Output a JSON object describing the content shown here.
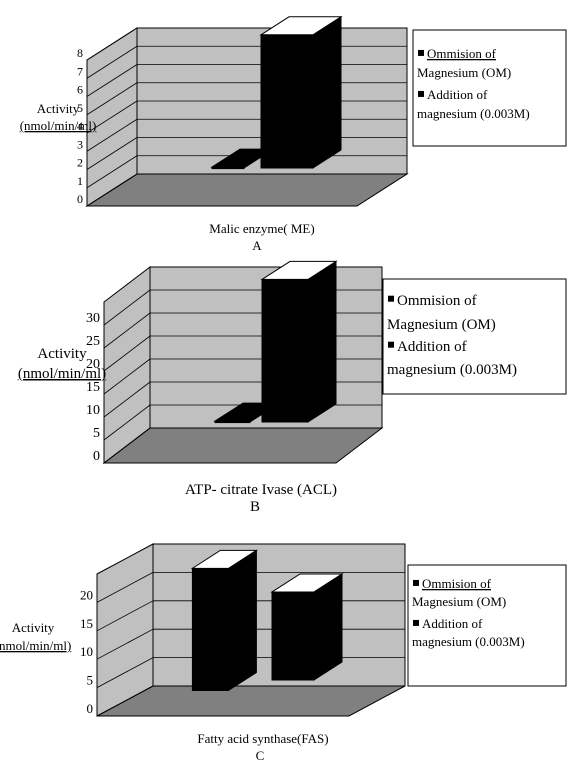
{
  "chart_data": [
    {
      "type": "bar",
      "ylabel_line1": "Activity",
      "ylabel_line2": "(nmol/min/ml)",
      "category": "Malic enzyme( ME)",
      "panel": "A",
      "yticks": [
        0,
        1,
        2,
        3,
        4,
        5,
        6,
        7,
        8
      ],
      "ylim": [
        0,
        8
      ],
      "series": [
        {
          "name": "Ommision of Magnesium (OM)",
          "value": 0.05,
          "color": "#000000"
        },
        {
          "name": "Addition of magnesium (0.003M)",
          "value": 7.3,
          "color": "#000000"
        }
      ],
      "legend": {
        "line1": "Ommision of",
        "line2": "Magnesium (OM)",
        "line3": "Addition of",
        "line4": "magnesium (0.003M)"
      }
    },
    {
      "type": "bar",
      "ylabel_line1": "Activity",
      "ylabel_line2": "(nmol/min/ml)",
      "category": "ATP- citrate Ivase (ACL)",
      "panel": "B",
      "yticks": [
        0,
        5,
        10,
        15,
        20,
        25,
        30
      ],
      "ylim": [
        0,
        35
      ],
      "series": [
        {
          "name": "Ommision of Magnesium (OM)",
          "value": 0.2,
          "color": "#000000"
        },
        {
          "name": "Addition of magnesium (0.003M)",
          "value": 31,
          "color": "#000000"
        }
      ],
      "legend": {
        "line1": "Ommision of",
        "line2": "Magnesium (OM)",
        "line3": "Addition of",
        "line4": "magnesium (0.003M)"
      }
    },
    {
      "type": "bar",
      "ylabel_line1": "Activity",
      "ylabel_line2": "(nmol/min/ml)",
      "category": "Fatty acid synthase(FAS)",
      "panel": "C",
      "yticks": [
        0,
        5,
        10,
        15,
        20
      ],
      "ylim": [
        0,
        25
      ],
      "series": [
        {
          "name": "Ommision of Magnesium (OM)",
          "value": 21.5,
          "color": "#000000"
        },
        {
          "name": "Addition of magnesium (0.003M)",
          "value": 15.5,
          "color": "#000000"
        }
      ],
      "legend": {
        "line1": "Ommision of",
        "line2": "Magnesium (OM)",
        "line3": "Addition of",
        "line4": "magnesium (0.003M)"
      }
    }
  ]
}
